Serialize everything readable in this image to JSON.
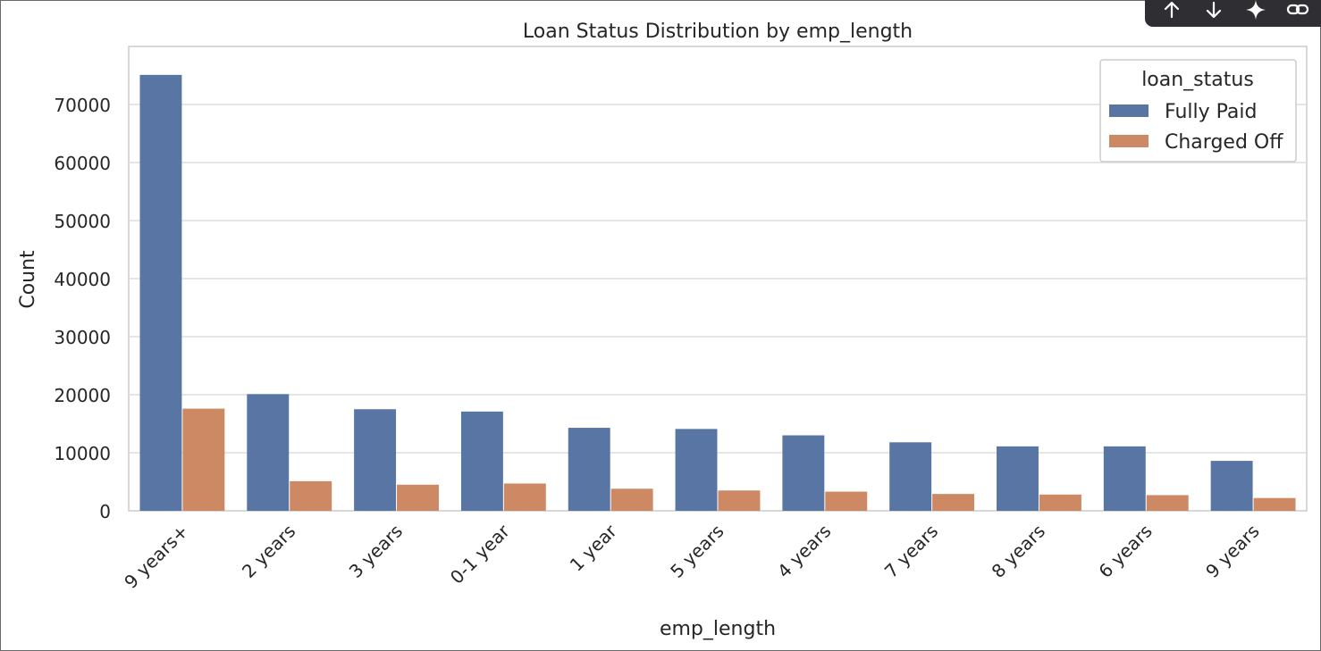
{
  "toolbar": {
    "icons": [
      "arrow-up-icon",
      "arrow-down-icon",
      "sparkle-icon",
      "link-icon"
    ]
  },
  "chart_data": {
    "type": "bar",
    "title": "Loan Status Distribution by emp_length",
    "xlabel": "emp_length",
    "ylabel": "Count",
    "ylim": [
      0,
      80000
    ],
    "yticks": [
      0,
      10000,
      20000,
      30000,
      40000,
      50000,
      60000,
      70000
    ],
    "grid": true,
    "legend": {
      "title": "loan_status",
      "placement": "top-right"
    },
    "categories": [
      "9 years+",
      "2 years",
      "3 years",
      "0-1 year",
      "1 year",
      "5 years",
      "4 years",
      "7 years",
      "8 years",
      "6 years",
      "9 years"
    ],
    "series": [
      {
        "name": "Fully Paid",
        "color": "#5875a4",
        "values": [
          75100,
          20100,
          17500,
          17100,
          14300,
          14100,
          13000,
          11800,
          11100,
          11100,
          8600
        ]
      },
      {
        "name": "Charged Off",
        "color": "#cc8963",
        "values": [
          17600,
          5100,
          4500,
          4700,
          3800,
          3500,
          3300,
          2900,
          2800,
          2700,
          2200
        ]
      }
    ]
  }
}
